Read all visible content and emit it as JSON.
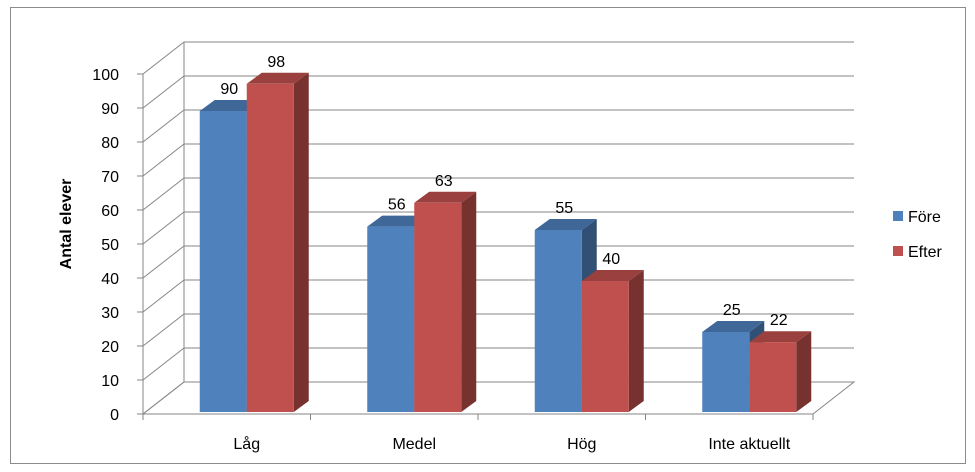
{
  "chart_data": {
    "type": "bar",
    "categories": [
      "Låg",
      "Medel",
      "Hög",
      "Inte aktuellt"
    ],
    "series": [
      {
        "name": "Före",
        "values": [
          90,
          56,
          55,
          25
        ],
        "color": "#4f81bd"
      },
      {
        "name": "Efter",
        "values": [
          98,
          63,
          40,
          22
        ],
        "color": "#c0504d"
      }
    ],
    "ylabel": "Antal elever",
    "xlabel": "",
    "ylim": [
      0,
      100
    ],
    "yticks": [
      0,
      10,
      20,
      30,
      40,
      50,
      60,
      70,
      80,
      90,
      100
    ],
    "grid": true,
    "legend": "right",
    "style": "3d-clustered-column"
  }
}
